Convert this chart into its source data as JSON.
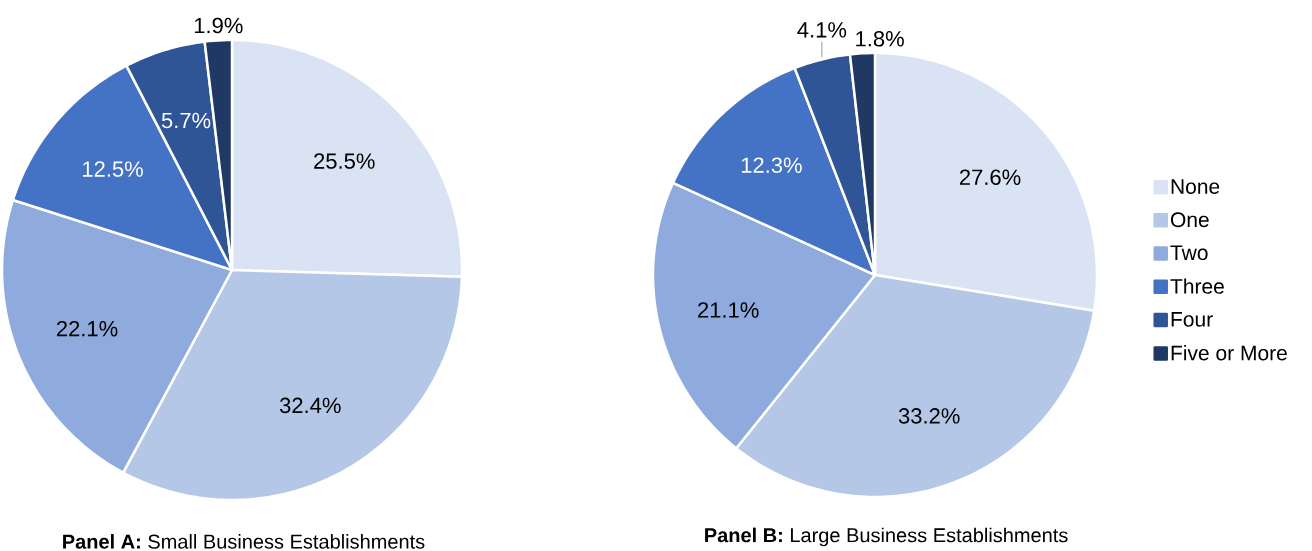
{
  "chart_data": [
    {
      "type": "pie",
      "title": "**Panel A:** Small Business Establishments",
      "values": [
        25.5,
        32.4,
        22.1,
        12.5,
        5.7,
        1.9
      ],
      "value_labels": [
        "25.5%",
        "32.4%",
        "22.1%",
        "12.5%",
        "5.7%",
        "1.9%"
      ],
      "colors": [
        "#dae3f3",
        "#b4c7e7",
        "#8faadc",
        "#4472c4",
        "#2f5597",
        "#1f3864"
      ],
      "legend": false
    },
    {
      "type": "pie",
      "title": "**Panel B:** Large Business Establishments",
      "categories": [
        "None",
        "One",
        "Two",
        "Three",
        "Four",
        "Five or More"
      ],
      "values": [
        27.6,
        33.2,
        21.1,
        12.3,
        4.1,
        1.8
      ],
      "value_labels": [
        "27.6%",
        "33.2%",
        "21.1%",
        "12.3%",
        "4.1%",
        "1.8%"
      ],
      "colors": [
        "#dae3f3",
        "#b4c7e7",
        "#8faadc",
        "#4472c4",
        "#2f5597",
        "#1f3864"
      ],
      "legend": "right"
    }
  ]
}
